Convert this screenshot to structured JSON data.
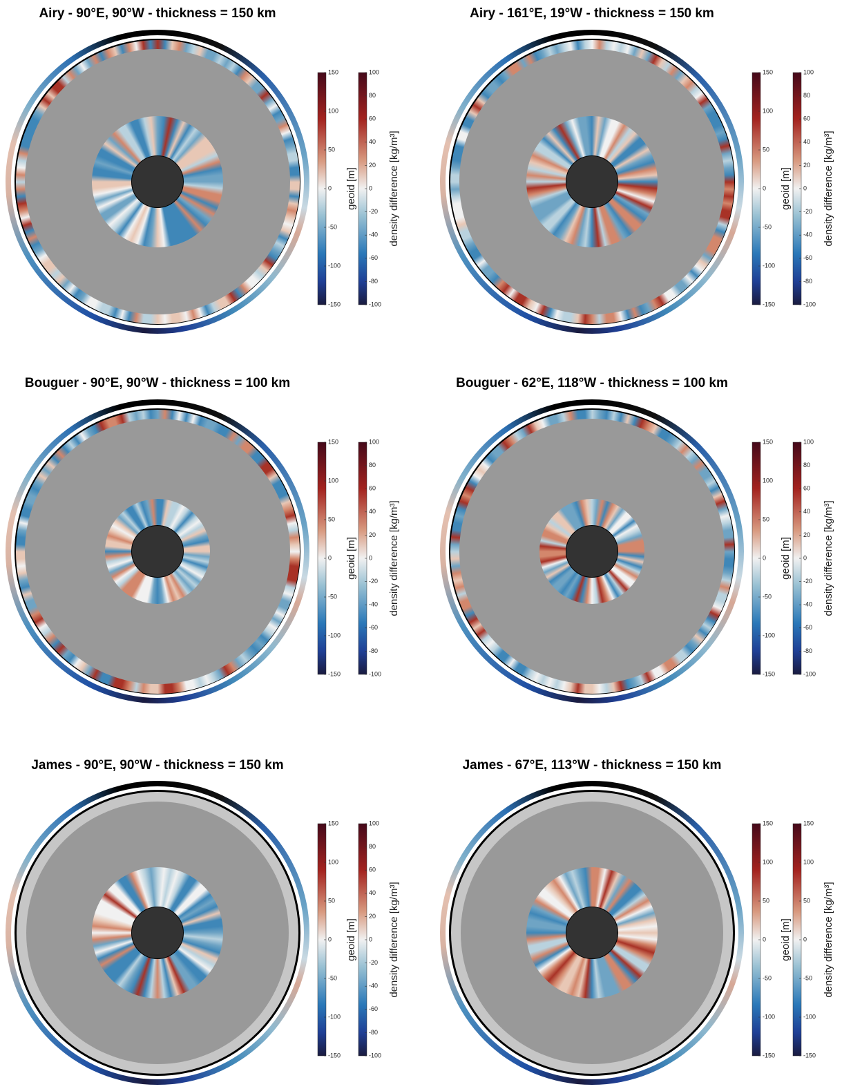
{
  "chart_data": [
    {
      "type": "annulus",
      "title": "Airy - 90°E, 90°W - thickness = 150 km",
      "colorbars": [
        {
          "label": "geoid [m]",
          "ylim": [
            -150,
            150
          ],
          "yticks": [
            -150,
            -100,
            -50,
            0,
            50,
            100,
            150
          ]
        },
        {
          "label": "density difference [kg/m³]",
          "ylim": [
            -100,
            100
          ],
          "yticks": [
            -100,
            -80,
            -60,
            -40,
            -20,
            0,
            20,
            40,
            60,
            80,
            100
          ]
        }
      ]
    },
    {
      "type": "annulus",
      "title": "Airy - 161°E, 19°W - thickness = 150 km",
      "colorbars": [
        {
          "label": "geoid [m]",
          "ylim": [
            -150,
            150
          ],
          "yticks": [
            -150,
            -100,
            -50,
            0,
            50,
            100,
            150
          ]
        },
        {
          "label": "density difference [kg/m³]",
          "ylim": [
            -100,
            100
          ],
          "yticks": [
            -100,
            -80,
            -60,
            -40,
            -20,
            0,
            20,
            40,
            60,
            80,
            100
          ]
        }
      ]
    },
    {
      "type": "annulus",
      "title": "Bouguer - 90°E, 90°W - thickness = 100 km",
      "colorbars": [
        {
          "label": "geoid [m]",
          "ylim": [
            -150,
            150
          ],
          "yticks": [
            -150,
            -100,
            -50,
            0,
            50,
            100,
            150
          ]
        },
        {
          "label": "density difference [kg/m³]",
          "ylim": [
            -100,
            100
          ],
          "yticks": [
            -100,
            -80,
            -60,
            -40,
            -20,
            0,
            20,
            40,
            60,
            80,
            100
          ]
        }
      ]
    },
    {
      "type": "annulus",
      "title": "Bouguer - 62°E, 118°W - thickness = 100 km",
      "colorbars": [
        {
          "label": "geoid [m]",
          "ylim": [
            -150,
            150
          ],
          "yticks": [
            -150,
            -100,
            -50,
            0,
            50,
            100,
            150
          ]
        },
        {
          "label": "density difference [kg/m³]",
          "ylim": [
            -100,
            100
          ],
          "yticks": [
            -100,
            -80,
            -60,
            -40,
            -20,
            0,
            20,
            40,
            60,
            80,
            100
          ]
        }
      ]
    },
    {
      "type": "annulus",
      "title": "James - 90°E, 90°W - thickness = 150 km",
      "colorbars": [
        {
          "label": "geoid [m]",
          "ylim": [
            -150,
            150
          ],
          "yticks": [
            -150,
            -100,
            -50,
            0,
            50,
            100,
            150
          ]
        },
        {
          "label": "density difference [kg/m³]",
          "ylim": [
            -100,
            100
          ],
          "yticks": [
            -100,
            -80,
            -60,
            -40,
            -20,
            0,
            20,
            40,
            60,
            80,
            100
          ]
        }
      ]
    },
    {
      "type": "annulus",
      "title": "James - 67°E, 113°W - thickness = 150 km",
      "colorbars": [
        {
          "label": "geoid [m]",
          "ylim": [
            -150,
            150
          ],
          "yticks": [
            -150,
            -100,
            -50,
            0,
            50,
            100,
            150
          ]
        },
        {
          "label": "density difference [kg/m³]",
          "ylim": [
            -150,
            150
          ],
          "yticks": [
            -150,
            -100,
            -50,
            0,
            50,
            100,
            150
          ]
        }
      ]
    }
  ]
}
